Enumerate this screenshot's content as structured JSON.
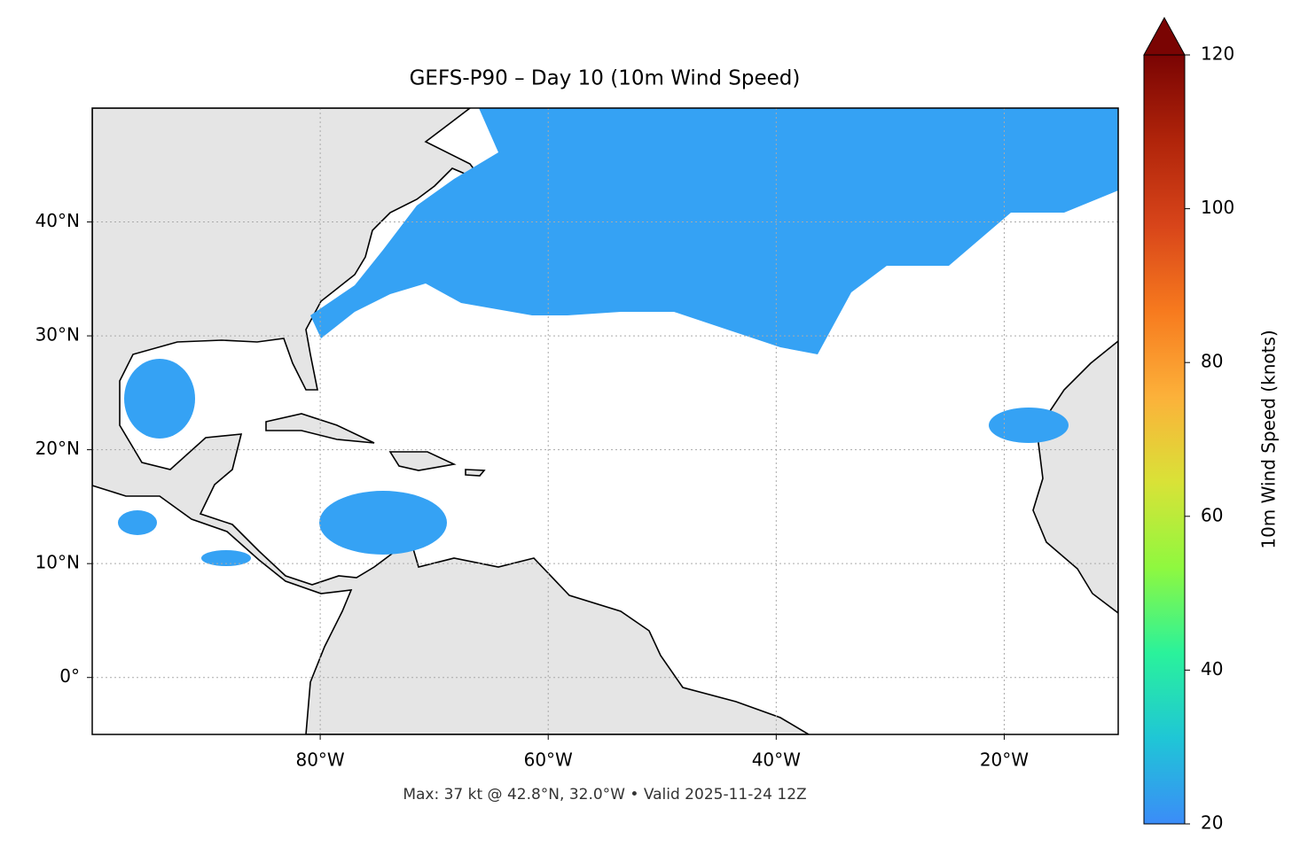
{
  "chart_data": {
    "type": "map",
    "title": "GEFS-P90 – Day 10 (10m Wind Speed)",
    "xlim": [
      -100,
      -10
    ],
    "ylim": [
      -5,
      50
    ],
    "xticks": [
      {
        "value": -80,
        "label": "80°W"
      },
      {
        "value": -60,
        "label": "60°W"
      },
      {
        "value": -40,
        "label": "40°W"
      },
      {
        "value": -20,
        "label": "20°W"
      }
    ],
    "yticks": [
      {
        "value": 0,
        "label": "0°"
      },
      {
        "value": 10,
        "label": "10°N"
      },
      {
        "value": 20,
        "label": "20°N"
      },
      {
        "value": 30,
        "label": "30°N"
      },
      {
        "value": 40,
        "label": "40°N"
      }
    ],
    "grid": true,
    "annotation": "Max: 37 kt @ 42.8°N, 32.0°W • Valid 2025-11-24 12Z",
    "colorbar": {
      "label": "10m Wind Speed (knots)",
      "lim": [
        20,
        120
      ],
      "ticks": [
        20,
        40,
        60,
        80,
        100,
        120
      ],
      "colors": [
        "#3b8cf8",
        "#1fc6d6",
        "#2af29b",
        "#8ff83f",
        "#d9e237",
        "#fcb13a",
        "#f77a1e",
        "#d8451a",
        "#b0240a",
        "#7a0403"
      ]
    }
  }
}
